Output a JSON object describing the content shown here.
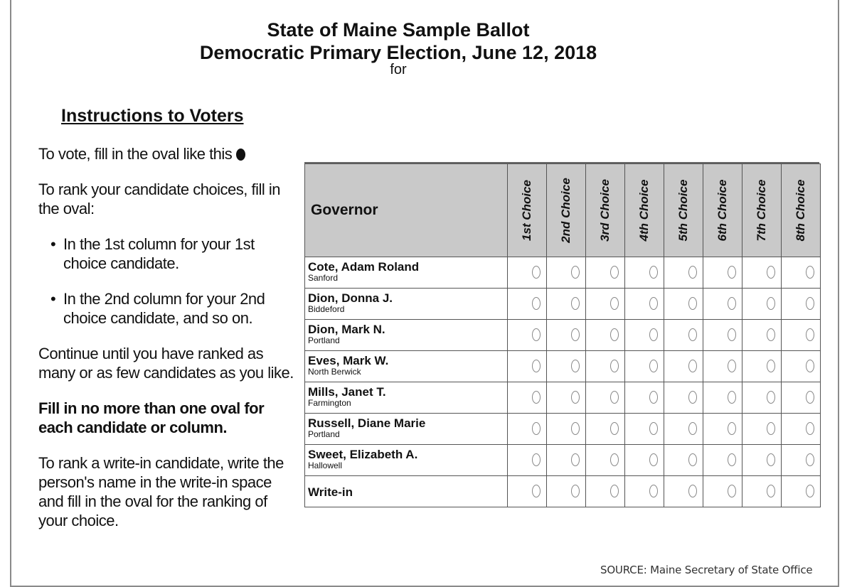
{
  "header": {
    "line1": "State of Maine Sample Ballot",
    "line2": "Democratic Primary Election, June 12, 2018",
    "line3": "for"
  },
  "instructions": {
    "heading": "Instructions to Voters",
    "vote_text": "To vote, fill in the oval like this",
    "rank_text": "To rank your candidate choices, fill in the oval:",
    "bullet1": "In the 1st column for your 1st choice candidate.",
    "bullet2": "In the 2nd column for your 2nd choice candidate, and so on.",
    "continue_text": "Continue until you have ranked as many or as few candidates as you like.",
    "warning": "Fill in no more than one oval for each candidate or column.",
    "writein_text": "To rank a write-in candidate, write the person's name in the write-in space and fill in the oval for the ranking of your choice."
  },
  "ballot": {
    "office": "Governor",
    "choices": [
      "1st Choice",
      "2nd Choice",
      "3rd Choice",
      "4th Choice",
      "5th Choice",
      "6th Choice",
      "7th Choice",
      "8th Choice"
    ],
    "candidates": [
      {
        "name": "Cote, Adam Roland",
        "town": "Sanford"
      },
      {
        "name": "Dion, Donna J.",
        "town": "Biddeford"
      },
      {
        "name": "Dion, Mark N.",
        "town": "Portland"
      },
      {
        "name": "Eves, Mark W.",
        "town": "North Berwick"
      },
      {
        "name": "Mills, Janet T.",
        "town": "Farmington"
      },
      {
        "name": "Russell, Diane Marie",
        "town": "Portland"
      },
      {
        "name": "Sweet, Elizabeth A.",
        "town": "Hallowell"
      }
    ],
    "writein_label": "Write-in"
  },
  "source": "SOURCE: Maine Secretary of State Office"
}
